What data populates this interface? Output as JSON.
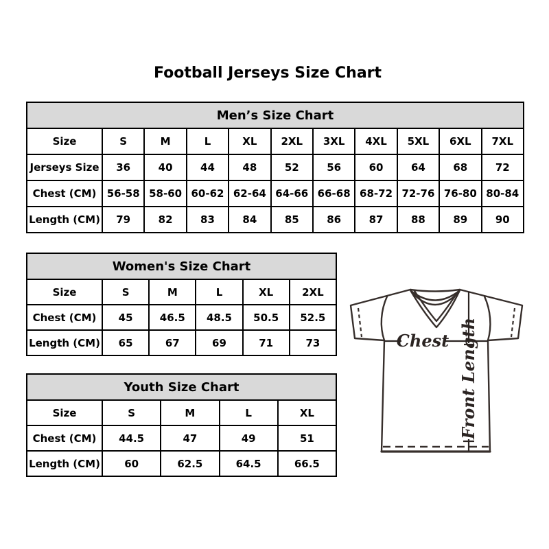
{
  "page": {
    "title": "Football Jerseys Size Chart"
  },
  "colors": {
    "background": "#ffffff",
    "table_header_bg": "#d9d9d9",
    "table_border": "#000000",
    "text": "#000000",
    "jersey_outline": "#362e2b"
  },
  "diagram": {
    "chest_label": "Chest",
    "front_length_label": "Front Length"
  },
  "chart_data": [
    {
      "type": "table",
      "title": "Men’s Size Chart",
      "columns": [
        "Size",
        "S",
        "M",
        "L",
        "XL",
        "2XL",
        "3XL",
        "4XL",
        "5XL",
        "6XL",
        "7XL"
      ],
      "rows": [
        [
          "Jerseys Size",
          "36",
          "40",
          "44",
          "48",
          "52",
          "56",
          "60",
          "64",
          "68",
          "72"
        ],
        [
          "Chest (CM)",
          "56-58",
          "58-60",
          "60-62",
          "62-64",
          "64-66",
          "66-68",
          "68-72",
          "72-76",
          "76-80",
          "80-84"
        ],
        [
          "Length (CM)",
          "79",
          "82",
          "83",
          "84",
          "85",
          "86",
          "87",
          "88",
          "89",
          "90"
        ]
      ]
    },
    {
      "type": "table",
      "title": "Women's Size Chart",
      "columns": [
        "Size",
        "S",
        "M",
        "L",
        "XL",
        "2XL"
      ],
      "rows": [
        [
          "Chest (CM)",
          "45",
          "46.5",
          "48.5",
          "50.5",
          "52.5"
        ],
        [
          "Length (CM)",
          "65",
          "67",
          "69",
          "71",
          "73"
        ]
      ]
    },
    {
      "type": "table",
      "title": "Youth Size Chart",
      "columns": [
        "Size",
        "S",
        "M",
        "L",
        "XL"
      ],
      "rows": [
        [
          "Chest (CM)",
          "44.5",
          "47",
          "49",
          "51"
        ],
        [
          "Length (CM)",
          "60",
          "62.5",
          "64.5",
          "66.5"
        ]
      ]
    }
  ]
}
